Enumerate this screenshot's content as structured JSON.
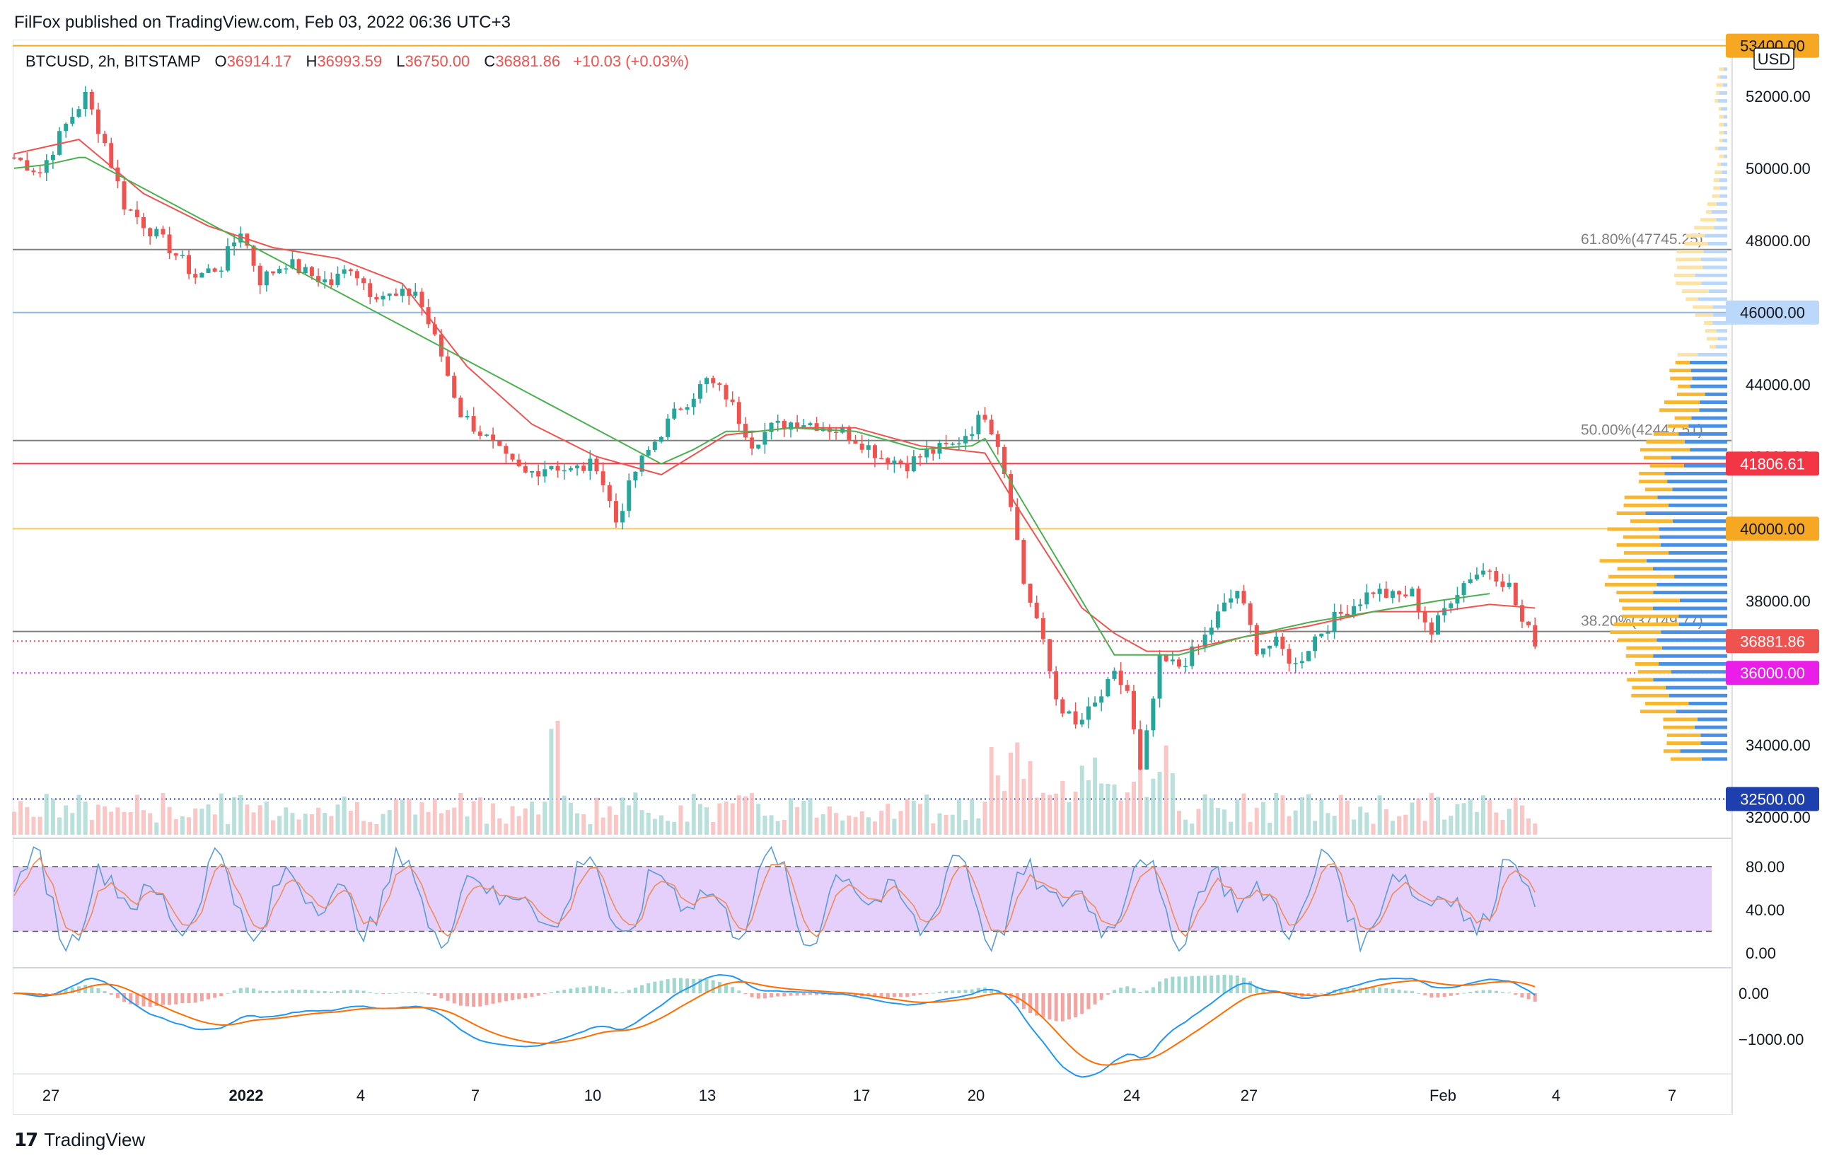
{
  "publisher_line": "FilFox published on TradingView.com, Feb 03, 2022 06:36 UTC+3",
  "brand": {
    "logo": "17",
    "name": "TradingView"
  },
  "header": {
    "symbol": "BTCUSD, 2h, BITSTAMP",
    "o_label": "O",
    "o": "36914.17",
    "h_label": "H",
    "h": "36993.59",
    "l_label": "L",
    "l": "36750.00",
    "c_label": "C",
    "c": "36881.86",
    "change": "+10.03 (+0.03%)"
  },
  "colors": {
    "up": "#26a69a",
    "down": "#ef5350",
    "ma_red": "#ef5350",
    "ma_green": "#4caf50",
    "stoch_k": "#5b9bd5",
    "stoch_d": "#ef8a5a",
    "stoch_band": "#e1c8fb",
    "macd_line": "#2196f3",
    "signal_line": "#ff6d00",
    "orange_label": "#f7a823",
    "blue_label": "#1e40af",
    "magenta_label": "#e91ee9",
    "red_label": "#f23645",
    "light_blue_label": "#bbd8fb"
  },
  "chart_data": [
    {
      "type": "candlestick",
      "title": "BTCUSD, 2h, BITSTAMP",
      "currency": "USD",
      "x_tick_labels": [
        "27",
        "2022",
        "4",
        "7",
        "10",
        "13",
        "17",
        "20",
        "24",
        "27",
        "Feb",
        "4",
        "7"
      ],
      "y_tick_labels": [
        "52000.00",
        "50000.00",
        "48000.00",
        "46000.00",
        "44000.00",
        "42000.00",
        "40000.00",
        "38000.00",
        "36000.00",
        "34000.00",
        "32000.00"
      ],
      "ylim": [
        31700,
        53700
      ],
      "price_trace": [
        [
          0,
          50300
        ],
        [
          4,
          49900
        ],
        [
          8,
          51200
        ],
        [
          11,
          52000
        ],
        [
          14,
          50700
        ],
        [
          17,
          49000
        ],
        [
          21,
          48300
        ],
        [
          24,
          47800
        ],
        [
          28,
          47000
        ],
        [
          32,
          47300
        ],
        [
          35,
          48300
        ],
        [
          38,
          46900
        ],
        [
          42,
          47400
        ],
        [
          45,
          47100
        ],
        [
          49,
          46800
        ],
        [
          52,
          47300
        ],
        [
          55,
          46600
        ],
        [
          59,
          46400
        ],
        [
          62,
          46600
        ],
        [
          66,
          44800
        ],
        [
          69,
          43200
        ],
        [
          73,
          42500
        ],
        [
          76,
          41900
        ],
        [
          79,
          41500
        ],
        [
          83,
          41800
        ],
        [
          86,
          41600
        ],
        [
          90,
          41800
        ],
        [
          93,
          40200
        ],
        [
          96,
          41600
        ],
        [
          100,
          42700
        ],
        [
          103,
          43400
        ],
        [
          107,
          44100
        ],
        [
          110,
          43700
        ],
        [
          114,
          42400
        ],
        [
          117,
          42800
        ],
        [
          121,
          43000
        ],
        [
          124,
          42900
        ],
        [
          128,
          42700
        ],
        [
          131,
          42400
        ],
        [
          134,
          42000
        ],
        [
          138,
          41800
        ],
        [
          141,
          42100
        ],
        [
          145,
          42300
        ],
        [
          148,
          42800
        ],
        [
          150,
          43200
        ],
        [
          152,
          42400
        ],
        [
          154,
          40800
        ],
        [
          156,
          38500
        ],
        [
          158,
          37500
        ],
        [
          161,
          35300
        ],
        [
          164,
          34500
        ],
        [
          167,
          35100
        ],
        [
          170,
          35900
        ],
        [
          172,
          35500
        ],
        [
          174,
          33200
        ],
        [
          177,
          36300
        ],
        [
          180,
          36200
        ],
        [
          183,
          36700
        ],
        [
          186,
          37600
        ],
        [
          189,
          38300
        ],
        [
          192,
          36700
        ],
        [
          195,
          36800
        ],
        [
          198,
          36200
        ],
        [
          201,
          37000
        ],
        [
          204,
          37500
        ],
        [
          207,
          37900
        ],
        [
          210,
          38300
        ],
        [
          213,
          38100
        ],
        [
          216,
          38200
        ],
        [
          219,
          37100
        ],
        [
          222,
          38100
        ],
        [
          225,
          38700
        ],
        [
          228,
          38900
        ],
        [
          231,
          38400
        ],
        [
          233,
          37400
        ],
        [
          235,
          36900
        ]
      ],
      "ma_red": [
        [
          0,
          50400
        ],
        [
          10,
          50800
        ],
        [
          20,
          49300
        ],
        [
          30,
          48400
        ],
        [
          40,
          47800
        ],
        [
          50,
          47500
        ],
        [
          60,
          46800
        ],
        [
          70,
          44500
        ],
        [
          80,
          42900
        ],
        [
          90,
          42000
        ],
        [
          100,
          41500
        ],
        [
          110,
          42600
        ],
        [
          120,
          42800
        ],
        [
          130,
          42800
        ],
        [
          140,
          42300
        ],
        [
          150,
          42100
        ],
        [
          155,
          40600
        ],
        [
          160,
          39200
        ],
        [
          165,
          37800
        ],
        [
          170,
          37100
        ],
        [
          175,
          36600
        ],
        [
          180,
          36600
        ],
        [
          190,
          37000
        ],
        [
          200,
          37300
        ],
        [
          210,
          37700
        ],
        [
          220,
          37700
        ],
        [
          228,
          37900
        ],
        [
          235,
          37800
        ]
      ],
      "ma_green": [
        [
          0,
          50000
        ],
        [
          5,
          50100
        ],
        [
          10,
          50300
        ],
        [
          11,
          50300
        ],
        [
          100,
          41800
        ],
        [
          105,
          42200
        ],
        [
          110,
          42700
        ],
        [
          115,
          42700
        ],
        [
          120,
          42800
        ],
        [
          130,
          42700
        ],
        [
          140,
          42200
        ],
        [
          148,
          42300
        ],
        [
          150,
          42500
        ],
        [
          170,
          36500
        ],
        [
          180,
          36500
        ],
        [
          190,
          37000
        ],
        [
          200,
          37400
        ],
        [
          210,
          37700
        ],
        [
          220,
          38000
        ],
        [
          228,
          38200
        ]
      ],
      "horizontal_levels": [
        {
          "price": 53400,
          "color": "#f7a823",
          "style": "solid",
          "label": "53400.00",
          "label_bg": "#f7a823",
          "label_fg": "#131722"
        },
        {
          "price": 47745.25,
          "color": "#7f7f7f",
          "style": "solid",
          "fib_label": "61.80%(47745.25)"
        },
        {
          "price": 46000,
          "color": "#90b8ec",
          "style": "solid",
          "label": "46000.00",
          "label_bg": "#bbd8fb",
          "label_fg": "#131722"
        },
        {
          "price": 42447.51,
          "color": "#7f7f7f",
          "style": "solid",
          "fib_label": "50.00%(42447.51)"
        },
        {
          "price": 41806.61,
          "color": "#f23645",
          "style": "solid",
          "label": "41806.61",
          "label_bg": "#f23645",
          "label_fg": "#ffffff"
        },
        {
          "price": 40000,
          "color": "#f7c95c",
          "style": "solid",
          "label": "40000.00",
          "label_bg": "#f7a823",
          "label_fg": "#131722"
        },
        {
          "price": 37149.77,
          "color": "#7f7f7f",
          "style": "solid",
          "fib_label": "38.20%(37149.77)"
        },
        {
          "price": 36881.86,
          "color": "#ef5350",
          "style": "dotted",
          "label": "36881.86",
          "label_bg": "#ef5350",
          "label_fg": "#ffffff"
        },
        {
          "price": 36000,
          "color": "#e91ee9",
          "style": "dotted",
          "label": "36000.00",
          "label_bg": "#e91ee9",
          "label_fg": "#ffffff"
        },
        {
          "price": 32500,
          "color": "#1e40af",
          "style": "dotted",
          "label": "32500.00",
          "label_bg": "#1e40af",
          "label_fg": "#ffffff"
        }
      ],
      "volume_profile": "visible range volume profile on right edge, highest near 36000-42000",
      "stochastic": {
        "y_tick_labels": [
          "80.00",
          "40.00",
          "0.00"
        ],
        "band": [
          20,
          80
        ],
        "ylim": [
          0,
          100
        ]
      },
      "macd": {
        "y_tick_labels": [
          "0.00",
          "−1000.00"
        ],
        "ylim": [
          -1700,
          600
        ]
      }
    }
  ]
}
